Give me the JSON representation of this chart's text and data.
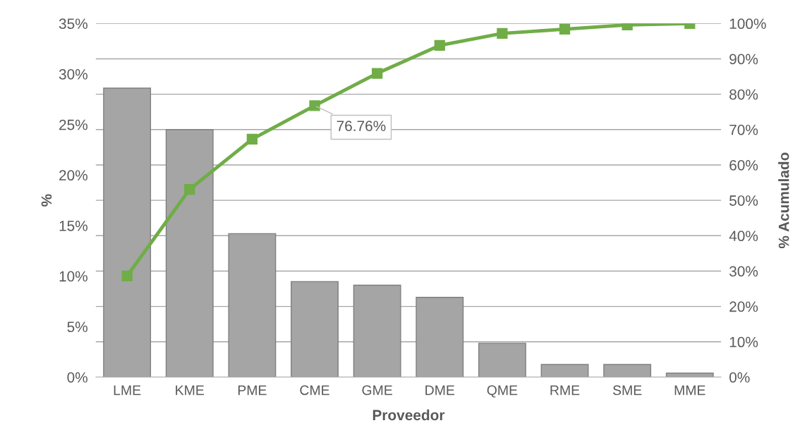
{
  "chart_data": {
    "type": "bar",
    "xlabel": "Proveedor",
    "ylabel": "%",
    "y2label": "% Acumulado",
    "categories": [
      "LME",
      "KME",
      "PME",
      "CME",
      "GME",
      "DME",
      "QME",
      "RME",
      "SME",
      "MME"
    ],
    "series": [
      {
        "color": "#a5a5a5",
        "values": [
          28.6,
          24.5,
          14.2,
          9.46,
          9.1,
          7.9,
          3.35,
          1.25,
          1.25,
          0.4
        ]
      },
      {
        "type": "line",
        "axis": "y2",
        "color": "#70ad47",
        "marker": "square",
        "values": [
          28.6,
          53.1,
          67.3,
          76.76,
          85.9,
          93.8,
          97.2,
          98.4,
          99.6,
          100
        ],
        "value_labels": [
          null,
          null,
          null,
          "76.76%",
          null,
          null,
          null,
          null,
          null,
          null
        ]
      }
    ],
    "ylim": [
      0,
      35
    ],
    "yticks": [
      {
        "value": 0,
        "label": "0%"
      },
      {
        "value": 5,
        "label": "5%"
      },
      {
        "value": 10,
        "label": "10%"
      },
      {
        "value": 15,
        "label": "15%"
      },
      {
        "value": 20,
        "label": "20%"
      },
      {
        "value": 25,
        "label": "25%"
      },
      {
        "value": 30,
        "label": "30%"
      },
      {
        "value": 35,
        "label": "35%"
      }
    ],
    "y2lim": [
      0,
      100
    ],
    "y2ticks": [
      {
        "value": 0,
        "label": "0%"
      },
      {
        "value": 10,
        "label": "10%"
      },
      {
        "value": 20,
        "label": "20%"
      },
      {
        "value": 30,
        "label": "30%"
      },
      {
        "value": 40,
        "label": "40%"
      },
      {
        "value": 50,
        "label": "50%"
      },
      {
        "value": 60,
        "label": "60%"
      },
      {
        "value": 70,
        "label": "70%"
      },
      {
        "value": 80,
        "label": "80%"
      },
      {
        "value": 90,
        "label": "90%"
      },
      {
        "value": 100,
        "label": "100%"
      }
    ],
    "grid": true,
    "legend": false
  }
}
